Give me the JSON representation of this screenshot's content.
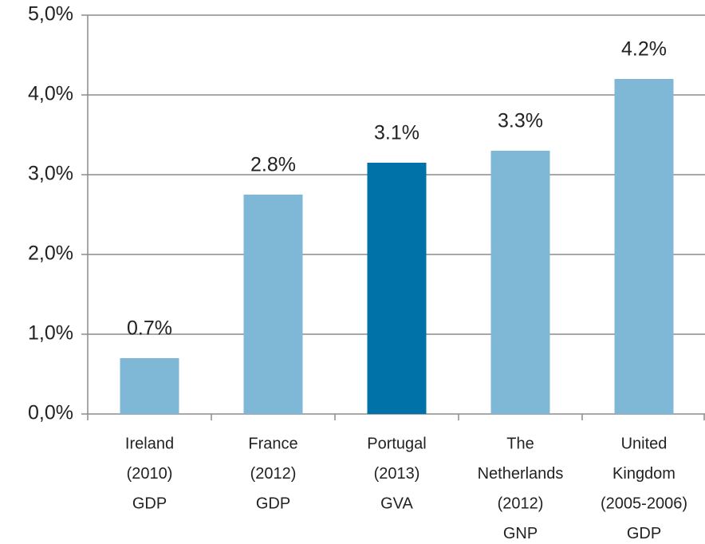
{
  "chart_data": {
    "type": "bar",
    "categories": [
      [
        "Ireland",
        "(2010)",
        "GDP"
      ],
      [
        "France",
        "(2012)",
        "GDP"
      ],
      [
        "Portugal",
        "(2013)",
        "GVA"
      ],
      [
        "The",
        "Netherlands",
        "(2012)",
        "GNP"
      ],
      [
        "United",
        "Kingdom",
        "(2005-2006)",
        "GDP"
      ]
    ],
    "values": [
      0.7,
      2.75,
      3.15,
      3.3,
      4.2
    ],
    "value_labels": [
      "0.7%",
      "2.8%",
      "3.1%",
      "3.3%",
      "4.2%"
    ],
    "colors": [
      "#7fb8d6",
      "#7fb8d6",
      "#0072a8",
      "#7fb8d6",
      "#7fb8d6"
    ],
    "ylim": [
      0,
      5
    ],
    "yticks": [
      {
        "value": 0,
        "label": "0,0%"
      },
      {
        "value": 1,
        "label": "1,0%"
      },
      {
        "value": 2,
        "label": "2,0%"
      },
      {
        "value": 3,
        "label": "3,0%"
      },
      {
        "value": 4,
        "label": "4,0%"
      },
      {
        "value": 5,
        "label": "5,0%"
      }
    ],
    "grid": true
  }
}
